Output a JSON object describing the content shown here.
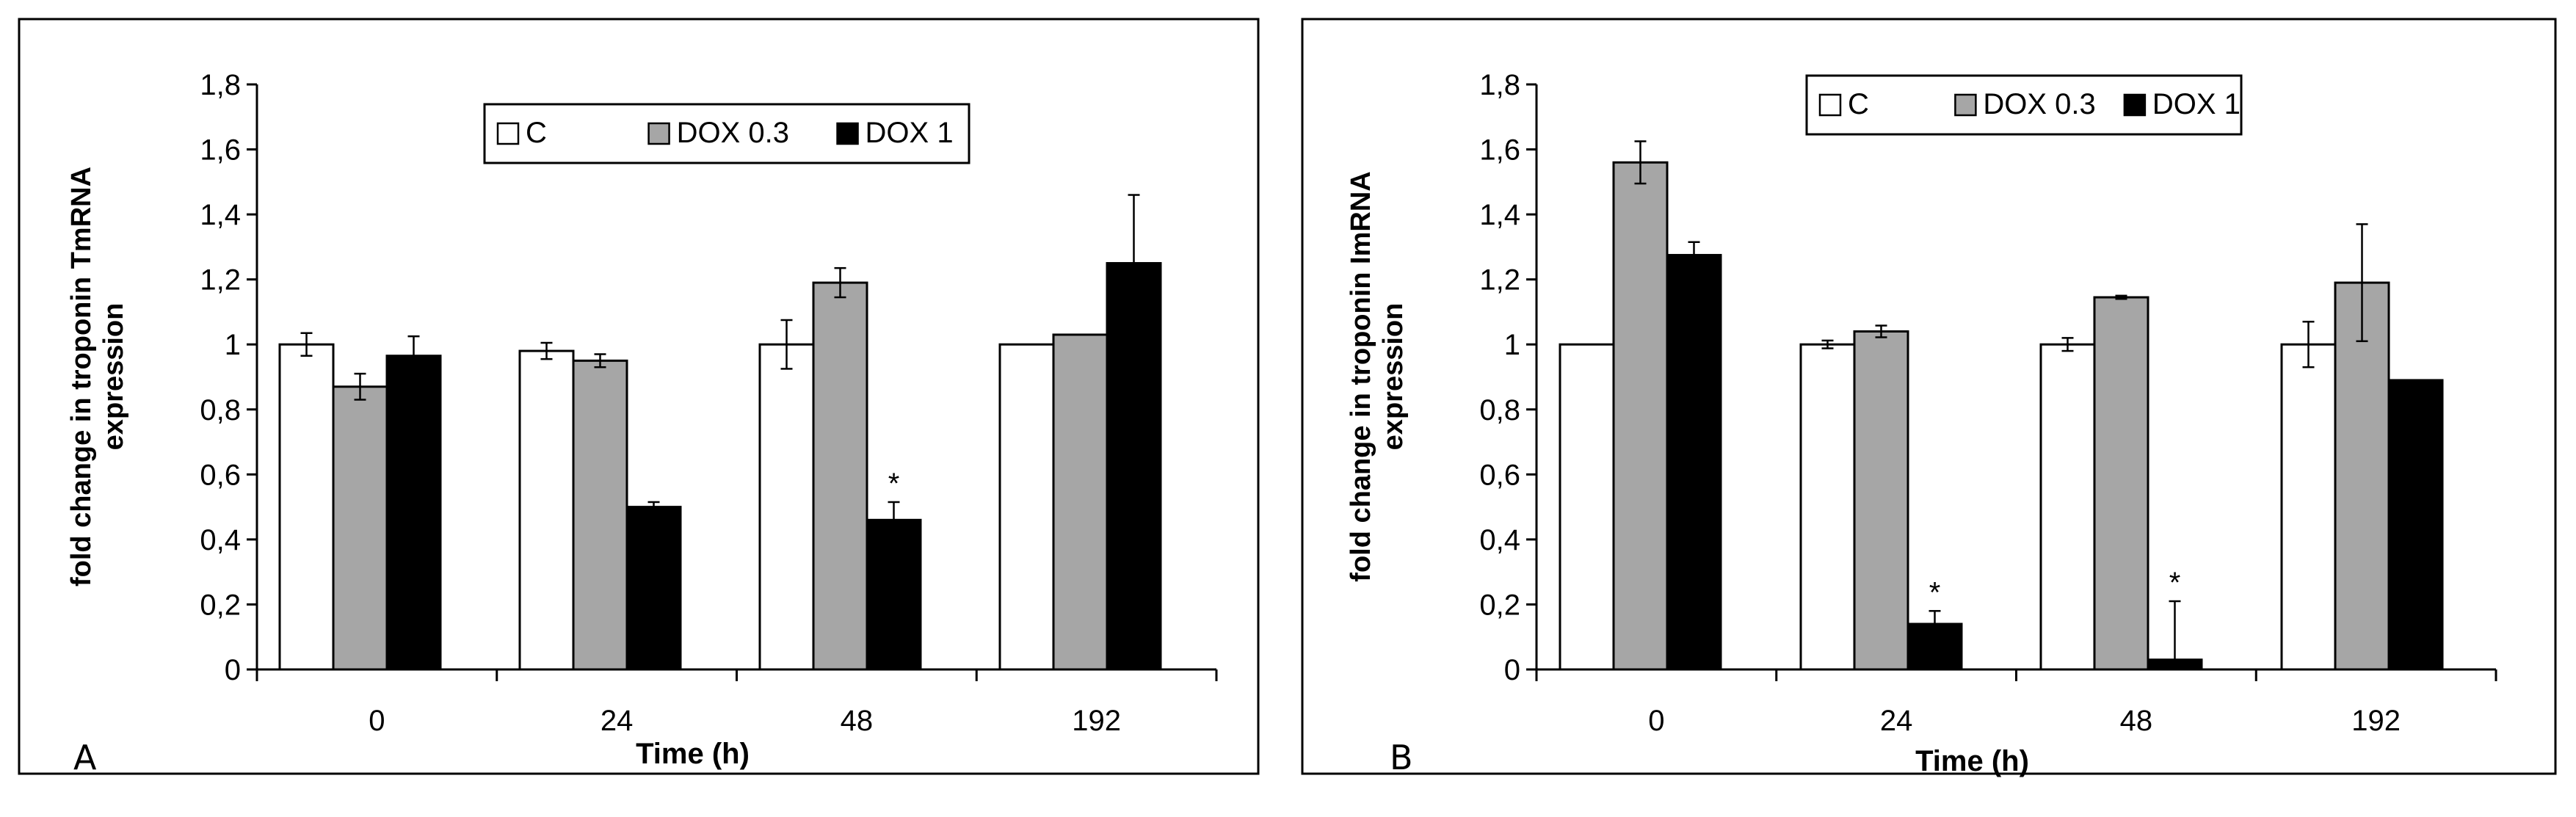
{
  "chart_data": [
    {
      "type": "bar",
      "panel_label": "A",
      "categories": [
        "0",
        "24",
        "48",
        "192"
      ],
      "series": [
        {
          "name": "C",
          "color": "#ffffff",
          "values": [
            1.0,
            0.98,
            1.0,
            1.0
          ],
          "errors": [
            0.035,
            0.025,
            0.075,
            0
          ]
        },
        {
          "name": "DOX 0.3",
          "color": "#a6a6a6",
          "values": [
            0.87,
            0.95,
            1.19,
            1.03
          ],
          "errors": [
            0.04,
            0.02,
            0.045,
            0
          ]
        },
        {
          "name": "DOX 1",
          "color": "#000000",
          "values": [
            0.965,
            0.5,
            0.46,
            1.25
          ],
          "errors": [
            0.06,
            0.015,
            0.055,
            0.21
          ]
        }
      ],
      "annotations": [
        {
          "text": "*",
          "category": "48",
          "series": "DOX 1"
        }
      ],
      "ylabel_line1": "fold change in troponin TmRNA",
      "ylabel_line2": "expression",
      "xlabel": "Time (h)",
      "ylim": [
        0,
        1.8
      ],
      "yticks": [
        "0",
        "0,2",
        "0,4",
        "0,6",
        "0,8",
        "1",
        "1,2",
        "1,4",
        "1,6",
        "1,8"
      ],
      "legend": [
        "C",
        "DOX 0.3",
        "DOX 1"
      ]
    },
    {
      "type": "bar",
      "panel_label": "B",
      "categories": [
        "0",
        "24",
        "48",
        "192"
      ],
      "series": [
        {
          "name": "C",
          "color": "#ffffff",
          "values": [
            1.0,
            1.0,
            1.0,
            1.0
          ],
          "errors": [
            0,
            0.012,
            0.02,
            0.07
          ]
        },
        {
          "name": "DOX 0.3",
          "color": "#a6a6a6",
          "values": [
            1.56,
            1.04,
            1.145,
            1.19
          ],
          "errors": [
            0.065,
            0.018,
            0.005,
            0.18
          ]
        },
        {
          "name": "DOX 1",
          "color": "#000000",
          "values": [
            1.275,
            0.14,
            0.03,
            0.89
          ],
          "errors": [
            0.04,
            0.04,
            0.18,
            0
          ]
        }
      ],
      "annotations": [
        {
          "text": "*",
          "category": "24",
          "series": "DOX 1"
        },
        {
          "text": "*",
          "category": "48",
          "series": "DOX 1"
        }
      ],
      "ylabel_line1": "fold change in troponin ImRNA",
      "ylabel_line2": "expression",
      "xlabel": "Time (h)",
      "ylim": [
        0,
        1.8
      ],
      "yticks": [
        "0",
        "0,2",
        "0,4",
        "0,6",
        "0,8",
        "1",
        "1,2",
        "1,4",
        "1,6",
        "1,8"
      ],
      "legend": [
        "C",
        "DOX 0.3",
        "DOX 1"
      ]
    }
  ]
}
